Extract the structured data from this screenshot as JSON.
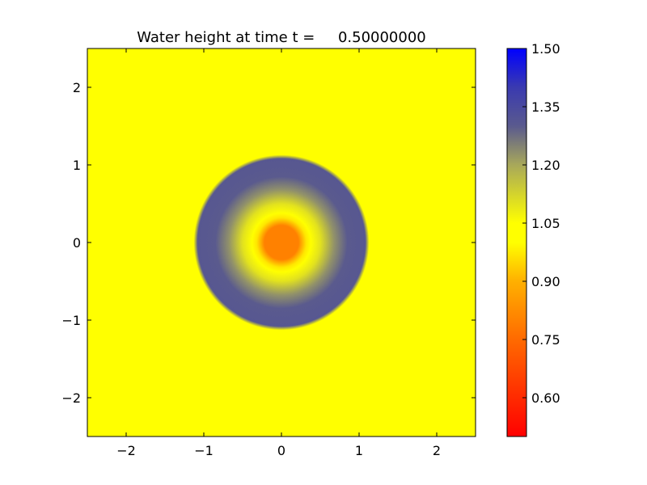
{
  "chart_data": {
    "type": "heatmap",
    "title": "Water height at time t =     0.50000000",
    "xlabel": "",
    "ylabel": "",
    "xlim": [
      -2.5,
      2.5
    ],
    "ylim": [
      -2.5,
      2.5
    ],
    "xticks": [
      -2,
      -1,
      0,
      1,
      2
    ],
    "yticks": [
      -2,
      -1,
      0,
      1,
      2
    ],
    "xtick_labels": [
      "−2",
      "−1",
      "0",
      "1",
      "2"
    ],
    "ytick_labels": [
      "−2",
      "−1",
      "0",
      "1",
      "2"
    ],
    "grid": false,
    "colorbar": {
      "range": [
        0.5,
        1.5
      ],
      "ticks": [
        0.6,
        0.75,
        0.9,
        1.05,
        1.2,
        1.35,
        1.5
      ],
      "tick_labels": [
        "0.60",
        "0.75",
        "0.90",
        "1.05",
        "1.20",
        "1.35",
        "1.50"
      ],
      "stops": [
        {
          "value": 0.5,
          "color": "#ff0000"
        },
        {
          "value": 0.75,
          "color": "#ff6a00"
        },
        {
          "value": 0.9,
          "color": "#ffb000"
        },
        {
          "value": 1.0,
          "color": "#ffff00"
        },
        {
          "value": 1.05,
          "color": "#ffff00"
        },
        {
          "value": 1.2,
          "color": "#a8a85a"
        },
        {
          "value": 1.3,
          "color": "#5a5a8e"
        },
        {
          "value": 1.4,
          "color": "#3a3ab0"
        },
        {
          "value": 1.5,
          "color": "#0000ff"
        }
      ]
    },
    "field": {
      "background": 1.0,
      "radial_profile": [
        {
          "r": 0.0,
          "value": 0.8
        },
        {
          "r": 0.22,
          "value": 0.8
        },
        {
          "r": 0.32,
          "value": 0.97
        },
        {
          "r": 0.38,
          "value": 1.02
        },
        {
          "r": 0.5,
          "value": 1.1
        },
        {
          "r": 0.68,
          "value": 1.23
        },
        {
          "r": 0.85,
          "value": 1.3
        },
        {
          "r": 1.08,
          "value": 1.31
        },
        {
          "r": 1.13,
          "value": 1.0
        }
      ]
    }
  }
}
